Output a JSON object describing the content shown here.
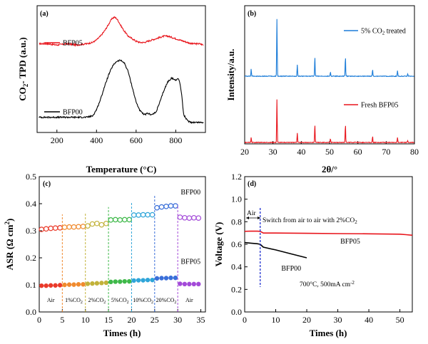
{
  "chart_data": [
    {
      "id": "a",
      "type": "line",
      "panel_label": "(a)",
      "xlabel": "Temperature (°C)",
      "ylabel": "CO2- TPD (a.u.)",
      "xlim": [
        100,
        950
      ],
      "xticks": [
        200,
        400,
        600,
        800
      ],
      "yticks_shown": false,
      "legend_position": "left",
      "series": [
        {
          "name": "BFP05",
          "color": "#e8141b",
          "x": [
            110,
            150,
            200,
            250,
            300,
            350,
            380,
            400,
            420,
            440,
            460,
            470,
            480,
            490,
            500,
            510,
            520,
            540,
            560,
            580,
            600,
            620,
            640,
            660,
            680,
            700,
            720,
            740,
            760,
            780,
            800,
            820,
            840,
            860,
            880,
            900,
            920,
            940
          ],
          "y": [
            0.7,
            0.7,
            0.69,
            0.7,
            0.69,
            0.7,
            0.71,
            0.73,
            0.76,
            0.8,
            0.85,
            0.88,
            0.9,
            0.91,
            0.9,
            0.88,
            0.85,
            0.8,
            0.76,
            0.74,
            0.72,
            0.71,
            0.71,
            0.72,
            0.73,
            0.74,
            0.75,
            0.76,
            0.76,
            0.75,
            0.74,
            0.73,
            0.72,
            0.71,
            0.7,
            0.7,
            0.7,
            0.69
          ]
        },
        {
          "name": "BFP00",
          "color": "#000000",
          "x": [
            110,
            150,
            200,
            250,
            300,
            350,
            380,
            400,
            420,
            440,
            460,
            480,
            500,
            520,
            540,
            560,
            580,
            600,
            620,
            640,
            660,
            680,
            700,
            720,
            740,
            760,
            780,
            800,
            810,
            820,
            830,
            840,
            860,
            880,
            900,
            920,
            940
          ],
          "y": [
            0.12,
            0.12,
            0.12,
            0.12,
            0.12,
            0.12,
            0.13,
            0.18,
            0.26,
            0.36,
            0.45,
            0.52,
            0.56,
            0.57,
            0.55,
            0.48,
            0.36,
            0.24,
            0.17,
            0.14,
            0.15,
            0.14,
            0.16,
            0.24,
            0.33,
            0.4,
            0.43,
            0.41,
            0.43,
            0.4,
            0.3,
            0.14,
            0.09,
            0.08,
            0.08,
            0.08,
            0.08
          ]
        }
      ]
    },
    {
      "id": "b",
      "type": "line",
      "panel_label": "(b)",
      "xlabel": "2θ/°",
      "ylabel": "Intensity/a.u.",
      "xlim": [
        20,
        80
      ],
      "xticks": [
        20,
        30,
        40,
        50,
        60,
        70,
        80
      ],
      "yticks_shown": false,
      "legend_position": "right",
      "peaks": [
        {
          "x": 22.3,
          "top": 0.13,
          "bot": 0.08
        },
        {
          "x": 31.4,
          "top": 1.0,
          "bot": 0.7
        },
        {
          "x": 38.6,
          "top": 0.2,
          "bot": 0.15
        },
        {
          "x": 44.8,
          "top": 0.35,
          "bot": 0.3
        },
        {
          "x": 50.3,
          "top": 0.08,
          "bot": 0.06
        },
        {
          "x": 55.6,
          "top": 0.35,
          "bot": 0.3
        },
        {
          "x": 65.2,
          "top": 0.12,
          "bot": 0.1
        },
        {
          "x": 74.0,
          "top": 0.1,
          "bot": 0.08
        },
        {
          "x": 77.6,
          "top": 0.04,
          "bot": 0.03
        }
      ],
      "series": [
        {
          "name": "5% CO2 treated",
          "color": "#1b7cd8"
        },
        {
          "name": "Fresh BFP05",
          "color": "#e8141b"
        }
      ],
      "legend_top": "5% CO",
      "legend_top_sub": "2",
      "legend_top_tail": " treated",
      "legend_bottom": "Fresh BFP05"
    },
    {
      "id": "c",
      "type": "scatter",
      "panel_label": "(c)",
      "xlabel": "Times (h)",
      "ylabel": "ASR (Ω cm²)",
      "xlim": [
        0,
        36
      ],
      "ylim": [
        0,
        0.5
      ],
      "xticks": [
        0,
        5,
        10,
        15,
        20,
        25,
        30,
        35
      ],
      "yticks": [
        0.0,
        0.1,
        0.2,
        0.3,
        0.4,
        0.5
      ],
      "series_labels": [
        {
          "text": "BFP00",
          "x": 32.8,
          "y": 0.434
        },
        {
          "text": "BFP05",
          "x": 32.8,
          "y": 0.178
        }
      ],
      "segments": [
        {
          "label": "Air",
          "x0": 0,
          "x1": 5,
          "color": "#ea3a2a",
          "upper": [
            0.305,
            0.307,
            0.309,
            0.31,
            0.311
          ],
          "lower": [
            0.097,
            0.097,
            0.098,
            0.098,
            0.099
          ]
        },
        {
          "label": "1%CO",
          "sub": "2",
          "x0": 5,
          "x1": 10,
          "color": "#f08a2e",
          "upper": [
            0.313,
            0.314,
            0.314,
            0.315,
            0.316
          ],
          "lower": [
            0.1,
            0.101,
            0.101,
            0.102,
            0.102
          ]
        },
        {
          "label": "2%CO",
          "sub": "2",
          "x0": 10,
          "x1": 15,
          "color": "#c2b23a",
          "upper": [
            0.318,
            0.325,
            0.327,
            0.322,
            0.327
          ],
          "lower": [
            0.104,
            0.105,
            0.106,
            0.107,
            0.108
          ]
        },
        {
          "label": "5%CO",
          "sub": "2",
          "x0": 15,
          "x1": 20,
          "color": "#3fb94a",
          "upper": [
            0.34,
            0.341,
            0.34,
            0.341,
            0.341
          ],
          "lower": [
            0.111,
            0.112,
            0.112,
            0.113,
            0.113
          ]
        },
        {
          "label": "10%CO",
          "sub": "2",
          "x0": 20,
          "x1": 25,
          "color": "#2fa5d9",
          "upper": [
            0.358,
            0.358,
            0.359,
            0.359,
            0.359
          ],
          "lower": [
            0.116,
            0.117,
            0.117,
            0.118,
            0.118
          ]
        },
        {
          "label": "20%CO",
          "sub": "2",
          "x0": 25,
          "x1": 30,
          "color": "#3a6fd9",
          "upper": [
            0.385,
            0.388,
            0.39,
            0.392,
            0.392
          ],
          "lower": [
            0.124,
            0.125,
            0.125,
            0.126,
            0.126
          ]
        },
        {
          "label": "Air",
          "x0": 30,
          "x1": 35,
          "color": "#a34ad8",
          "upper": [
            0.35,
            0.348,
            0.347,
            0.348,
            0.347
          ],
          "lower": [
            0.104,
            0.103,
            0.103,
            0.103,
            0.103
          ]
        }
      ]
    },
    {
      "id": "d",
      "type": "line",
      "panel_label": "(d)",
      "xlabel": "Times (h)",
      "ylabel": "Voltage (V)",
      "xlim": [
        0,
        54
      ],
      "ylim": [
        0.0,
        1.2
      ],
      "xticks": [
        0,
        10,
        20,
        30,
        40,
        50
      ],
      "yticks": [
        0.0,
        0.2,
        0.4,
        0.6,
        0.8,
        1.0,
        1.2
      ],
      "switch_time": 5,
      "annotation_air": "Air",
      "annotation_switch": "Switch from air to air with 2%CO",
      "annotation_switch_sub": "2",
      "condition": "700°C, 500mA cm",
      "condition_sup": "-2",
      "series": [
        {
          "name": "BFP05",
          "color": "#e8141b",
          "x": [
            0,
            2,
            4,
            5,
            6,
            10,
            20,
            30,
            40,
            50,
            52,
            54
          ],
          "y": [
            0.715,
            0.717,
            0.716,
            0.715,
            0.7,
            0.7,
            0.697,
            0.695,
            0.693,
            0.69,
            0.685,
            0.68
          ]
        },
        {
          "name": "BFP00",
          "color": "#000000",
          "x": [
            0,
            2,
            4,
            5,
            6,
            10,
            15,
            20
          ],
          "y": [
            0.615,
            0.61,
            0.605,
            0.6,
            0.575,
            0.55,
            0.515,
            0.48
          ]
        }
      ]
    }
  ]
}
